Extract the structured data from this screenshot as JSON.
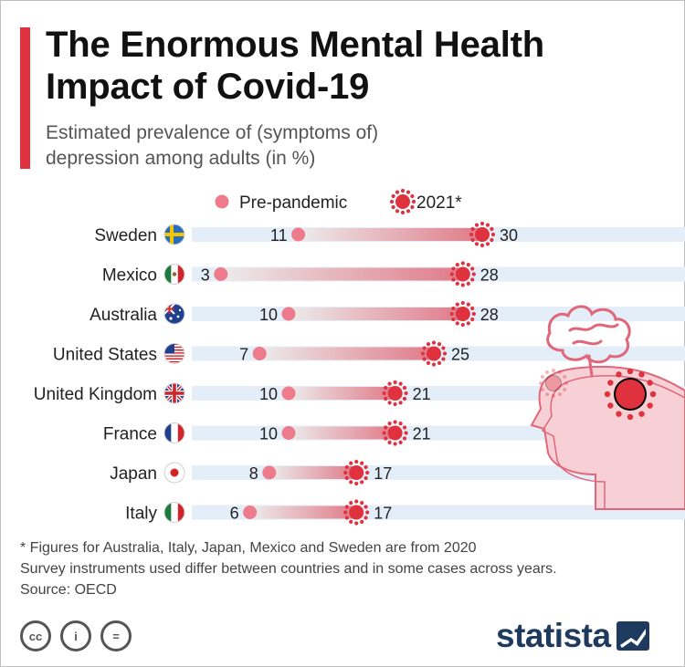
{
  "header": {
    "title_line1": "The Enormous Mental Health",
    "title_line2": "Impact of Covid-19",
    "subtitle_line1": "Estimated prevalence of (symptoms of)",
    "subtitle_line2": "depression among adults (in %)"
  },
  "colors": {
    "accent": "#e0313e",
    "pre_dot": "#ee7b8c",
    "covid_marker": "#e0313e",
    "band": "#e4eef9",
    "bar_start": "#ececec",
    "bar_end": "#e07a88",
    "head_fill": "#f7d0d6",
    "head_stroke": "#e06679"
  },
  "chart_data": {
    "type": "dumbbell",
    "categories": [
      "Sweden",
      "Mexico",
      "Australia",
      "United States",
      "United Kingdom",
      "France",
      "Japan",
      "Italy"
    ],
    "series": [
      {
        "name": "Pre-pandemic",
        "values": [
          11,
          3,
          10,
          7,
          10,
          10,
          8,
          6
        ]
      },
      {
        "name": "2021*",
        "values": [
          30,
          28,
          28,
          25,
          21,
          21,
          17,
          17
        ]
      }
    ],
    "legend_position": "top",
    "flags": [
      "flag-sweden-icon",
      "flag-mexico-icon",
      "flag-australia-icon",
      "flag-united-states-icon",
      "flag-united-kingdom-icon",
      "flag-france-icon",
      "flag-japan-icon",
      "flag-italy-icon"
    ]
  },
  "footer": {
    "note_line1": "* Figures for Australia, Italy, Japan, Mexico and Sweden are from 2020",
    "note_line2": "Survey instruments used differ between countries and in some cases across years.",
    "source": "Source: OECD",
    "license_cc": "cc",
    "license_by": "i",
    "license_nd": "=",
    "logo": "statista"
  }
}
